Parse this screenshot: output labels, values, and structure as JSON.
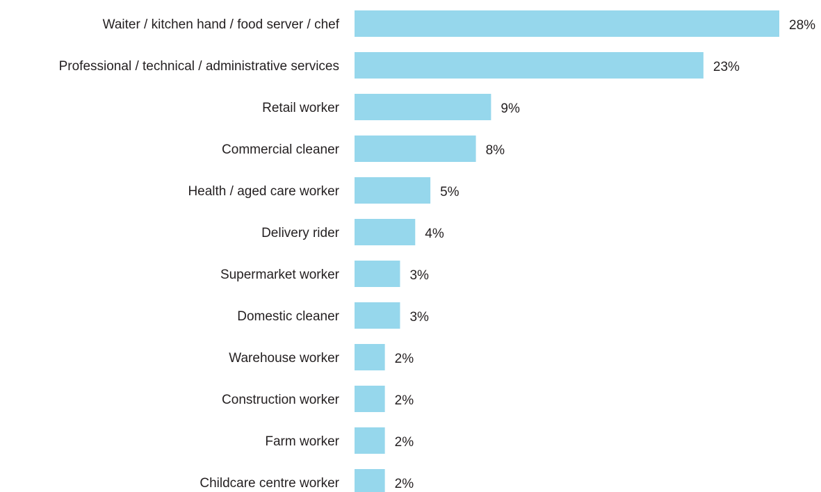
{
  "chart_data": {
    "type": "hbar",
    "categories": [
      "Waiter / kitchen hand / food server / chef",
      "Professional / technical / administrative services",
      "Retail worker",
      "Commercial cleaner",
      "Health / aged care worker",
      "Delivery rider",
      "Supermarket worker",
      "Domestic cleaner",
      "Warehouse worker",
      "Construction worker",
      "Farm worker",
      "Childcare centre worker"
    ],
    "values": [
      28,
      23,
      9,
      8,
      5,
      4,
      3,
      3,
      2,
      2,
      2,
      2
    ],
    "value_labels": [
      "28%",
      "23%",
      "9%",
      "8%",
      "5%",
      "4%",
      "3%",
      "3%",
      "2%",
      "2%",
      "2%",
      "2%"
    ],
    "color": "#96d7ec"
  }
}
